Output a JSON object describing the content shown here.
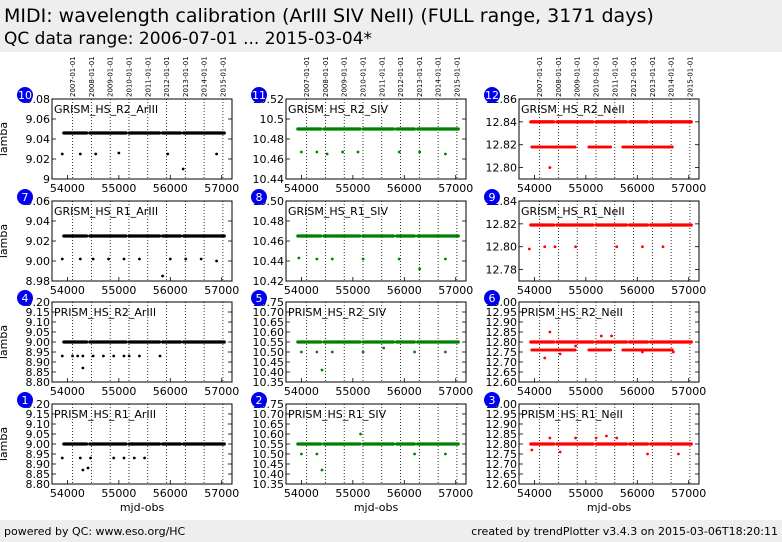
{
  "header": {
    "title": "MIDI: wavelength calibration (ArIII SIV NeII) (FULL range, 3171 days)",
    "subtitle": "QC data range: 2006-07-01 ... 2015-03-04*"
  },
  "footer": {
    "left": "powered by QC: www.eso.org/HC",
    "right": "created by trendPlotter v3.4.3 on 2015-03-06T18:20:11"
  },
  "colors": {
    "ArIII": "#000000",
    "SIV": "#008000",
    "NeII": "#ff0000",
    "badge": "#0000ee",
    "header_bg": "#eeeeee"
  },
  "chart_data": [
    {
      "panel": "10",
      "type": "scatter",
      "title": "GRISM_HS_R2_ArIII",
      "ylabel": "lamba",
      "xlabel": "",
      "ylim": [
        9.0,
        9.08
      ],
      "yticks": [
        9.0,
        9.02,
        9.04,
        9.06,
        9.08
      ],
      "xlim": [
        53700,
        57200
      ],
      "xticks": [
        54000,
        55000,
        56000,
        57000
      ],
      "color": "#000000",
      "main_value": 9.046,
      "outliers": [
        [
          53900,
          9.025
        ],
        [
          54250,
          9.025
        ],
        [
          54550,
          9.025
        ],
        [
          55000,
          9.026
        ],
        [
          55950,
          9.025
        ],
        [
          56250,
          9.01
        ],
        [
          56900,
          9.025
        ]
      ]
    },
    {
      "panel": "11",
      "type": "scatter",
      "title": "GRISM_HS_R2_SIV",
      "ylabel": "",
      "xlabel": "",
      "ylim": [
        10.44,
        10.52
      ],
      "yticks": [
        10.44,
        10.46,
        10.48,
        10.5,
        10.52
      ],
      "xlim": [
        53700,
        57200
      ],
      "xticks": [
        54000,
        55000,
        56000,
        57000
      ],
      "color": "#008000",
      "main_value": 10.49,
      "outliers": [
        [
          54000,
          10.467
        ],
        [
          54300,
          10.467
        ],
        [
          54500,
          10.465
        ],
        [
          54800,
          10.467
        ],
        [
          55100,
          10.467
        ],
        [
          55900,
          10.467
        ],
        [
          56300,
          10.467
        ],
        [
          56800,
          10.465
        ]
      ]
    },
    {
      "panel": "12",
      "type": "scatter",
      "title": "GRISM_HS_R2_NeII",
      "ylabel": "",
      "xlabel": "",
      "ylim": [
        12.79,
        12.86
      ],
      "yticks": [
        12.8,
        12.82,
        12.84,
        12.86
      ],
      "ytick_labels": [
        "12.80",
        "12.82",
        "12.84",
        "12.86"
      ],
      "xlim": [
        53700,
        57200
      ],
      "xticks": [
        54000,
        55000,
        56000,
        57000
      ],
      "color": "#ff0000",
      "main_value": 12.84,
      "secondary_value": 12.818,
      "outliers": [
        [
          54300,
          12.8
        ],
        [
          54100,
          12.818
        ],
        [
          54700,
          12.818
        ],
        [
          55200,
          12.818
        ],
        [
          55900,
          12.818
        ],
        [
          56300,
          12.818
        ],
        [
          56600,
          12.818
        ]
      ]
    },
    {
      "panel": "7",
      "type": "scatter",
      "title": "GRISM_HS_R1_ArIII",
      "ylabel": "lamba",
      "xlabel": "",
      "ylim": [
        8.98,
        9.06
      ],
      "yticks": [
        8.98,
        9.0,
        9.02,
        9.04,
        9.06
      ],
      "ytick_labels": [
        "8.98",
        "9.00",
        "9.02",
        "9.04",
        "9.06"
      ],
      "xlim": [
        53700,
        57200
      ],
      "xticks": [
        54000,
        55000,
        56000,
        57000
      ],
      "color": "#000000",
      "main_value": 9.025,
      "outliers": [
        [
          53900,
          9.002
        ],
        [
          54250,
          9.002
        ],
        [
          54500,
          9.002
        ],
        [
          54800,
          9.002
        ],
        [
          55100,
          9.002
        ],
        [
          55400,
          9.002
        ],
        [
          56000,
          9.002
        ],
        [
          56300,
          9.002
        ],
        [
          56600,
          9.002
        ],
        [
          55850,
          8.985
        ],
        [
          56900,
          9.0
        ]
      ]
    },
    {
      "panel": "8",
      "type": "scatter",
      "title": "GRISM_HS_R1_SIV",
      "ylabel": "",
      "xlabel": "",
      "ylim": [
        10.42,
        10.5
      ],
      "yticks": [
        10.42,
        10.44,
        10.46,
        10.48,
        10.5
      ],
      "ytick_labels": [
        "10.42",
        "10.44",
        "10.46",
        "10.48",
        "10.50"
      ],
      "xlim": [
        53700,
        57200
      ],
      "xticks": [
        54000,
        55000,
        56000,
        57000
      ],
      "color": "#008000",
      "main_value": 10.465,
      "outliers": [
        [
          53950,
          10.443
        ],
        [
          54300,
          10.442
        ],
        [
          54600,
          10.442
        ],
        [
          55200,
          10.442
        ],
        [
          55900,
          10.442
        ],
        [
          56300,
          10.432
        ],
        [
          56800,
          10.442
        ]
      ]
    },
    {
      "panel": "9",
      "type": "scatter",
      "title": "GRISM_HS_R1_NeII",
      "ylabel": "",
      "xlabel": "",
      "ylim": [
        12.77,
        12.84
      ],
      "yticks": [
        12.78,
        12.8,
        12.82,
        12.84
      ],
      "ytick_labels": [
        "12.78",
        "12.80",
        "12.82",
        "12.84"
      ],
      "xlim": [
        53700,
        57200
      ],
      "xticks": [
        54000,
        55000,
        56000,
        57000
      ],
      "color": "#ff0000",
      "main_value": 12.819,
      "outliers": [
        [
          53900,
          12.798
        ],
        [
          54200,
          12.8
        ],
        [
          54400,
          12.8
        ],
        [
          54800,
          12.8
        ],
        [
          55600,
          12.8
        ],
        [
          56100,
          12.8
        ],
        [
          56500,
          12.8
        ]
      ]
    },
    {
      "panel": "4",
      "type": "scatter",
      "title": "PRISM_HS_R2_ArIII",
      "ylabel": "lamba",
      "xlabel": "",
      "ylim": [
        8.8,
        9.2
      ],
      "yticks": [
        8.8,
        8.85,
        8.9,
        8.95,
        9.0,
        9.05,
        9.1,
        9.15,
        9.2
      ],
      "ytick_labels": [
        "8.80",
        "8.85",
        "8.90",
        "8.95",
        "9.00",
        "9.05",
        "9.10",
        "9.15",
        "9.20"
      ],
      "xlim": [
        53700,
        57200
      ],
      "xticks": [
        54000,
        55000,
        56000,
        57000
      ],
      "color": "#000000",
      "main_value": 9.0,
      "outliers": [
        [
          53900,
          8.93
        ],
        [
          54100,
          8.93
        ],
        [
          54200,
          8.93
        ],
        [
          54300,
          8.93
        ],
        [
          54500,
          8.93
        ],
        [
          54700,
          8.93
        ],
        [
          54900,
          8.93
        ],
        [
          55100,
          8.93
        ],
        [
          55200,
          8.93
        ],
        [
          55400,
          8.93
        ],
        [
          55800,
          8.93
        ],
        [
          54300,
          8.87
        ]
      ]
    },
    {
      "panel": "5",
      "type": "scatter",
      "title": "PRISM_HS_R2_SIV",
      "ylabel": "",
      "xlabel": "",
      "ylim": [
        10.35,
        10.75
      ],
      "yticks": [
        10.35,
        10.4,
        10.45,
        10.5,
        10.55,
        10.6,
        10.65,
        10.7,
        10.75
      ],
      "ytick_labels": [
        "10.35",
        "10.40",
        "10.45",
        "10.50",
        "10.55",
        "10.60",
        "10.65",
        "10.70",
        "10.75"
      ],
      "xlim": [
        53700,
        57200
      ],
      "xticks": [
        54000,
        55000,
        56000,
        57000
      ],
      "color": "#008000",
      "main_value": 10.55,
      "outliers": [
        [
          54000,
          10.5
        ],
        [
          54300,
          10.5
        ],
        [
          54600,
          10.5
        ],
        [
          55200,
          10.5
        ],
        [
          55600,
          10.52
        ],
        [
          56200,
          10.5
        ],
        [
          56800,
          10.5
        ],
        [
          54400,
          10.41
        ]
      ]
    },
    {
      "panel": "6",
      "type": "scatter",
      "title": "PRISM_HS_R2_NeII",
      "ylabel": "",
      "xlabel": "",
      "ylim": [
        12.6,
        13.0
      ],
      "yticks": [
        12.6,
        12.65,
        12.7,
        12.75,
        12.8,
        12.85,
        12.9,
        12.95,
        13.0
      ],
      "ytick_labels": [
        "12.60",
        "12.65",
        "12.70",
        "12.75",
        "12.80",
        "12.85",
        "12.90",
        "12.95",
        "13.00"
      ],
      "xlim": [
        53700,
        57200
      ],
      "xticks": [
        54000,
        55000,
        56000,
        57000
      ],
      "color": "#ff0000",
      "main_value": 12.8,
      "secondary_value": 12.76,
      "outliers": [
        [
          54300,
          12.85
        ],
        [
          54200,
          12.72
        ],
        [
          54500,
          12.74
        ],
        [
          54800,
          12.78
        ],
        [
          55300,
          12.83
        ],
        [
          55500,
          12.83
        ],
        [
          56100,
          12.75
        ],
        [
          56700,
          12.75
        ]
      ]
    },
    {
      "panel": "1",
      "type": "scatter",
      "title": "PRISM_HS_R1_ArIII",
      "ylabel": "lamba",
      "xlabel": "mjd-obs",
      "ylim": [
        8.8,
        9.2
      ],
      "yticks": [
        8.8,
        8.85,
        8.9,
        8.95,
        9.0,
        9.05,
        9.1,
        9.15,
        9.2
      ],
      "ytick_labels": [
        "8.80",
        "8.85",
        "8.90",
        "8.95",
        "9.00",
        "9.05",
        "9.10",
        "9.15",
        "9.20"
      ],
      "xlim": [
        53700,
        57200
      ],
      "xticks": [
        54000,
        55000,
        56000,
        57000
      ],
      "color": "#000000",
      "main_value": 9.0,
      "outliers": [
        [
          53900,
          8.93
        ],
        [
          54250,
          8.93
        ],
        [
          54450,
          8.93
        ],
        [
          54900,
          8.93
        ],
        [
          55100,
          8.93
        ],
        [
          55300,
          8.93
        ],
        [
          55500,
          8.93
        ],
        [
          54300,
          8.87
        ],
        [
          54400,
          8.88
        ]
      ]
    },
    {
      "panel": "2",
      "type": "scatter",
      "title": "PRISM_HS_R1_SIV",
      "ylabel": "",
      "xlabel": "mjd-obs",
      "ylim": [
        10.35,
        10.75
      ],
      "yticks": [
        10.35,
        10.4,
        10.45,
        10.5,
        10.55,
        10.6,
        10.65,
        10.7,
        10.75
      ],
      "ytick_labels": [
        "10.35",
        "10.40",
        "10.45",
        "10.50",
        "10.55",
        "10.60",
        "10.65",
        "10.70",
        "10.75"
      ],
      "xlim": [
        53700,
        57200
      ],
      "xticks": [
        54000,
        55000,
        56000,
        57000
      ],
      "color": "#008000",
      "main_value": 10.55,
      "outliers": [
        [
          54000,
          10.5
        ],
        [
          54300,
          10.5
        ],
        [
          55150,
          10.6
        ],
        [
          55400,
          10.55
        ],
        [
          56200,
          10.5
        ],
        [
          56800,
          10.5
        ],
        [
          54400,
          10.42
        ]
      ]
    },
    {
      "panel": "3",
      "type": "scatter",
      "title": "PRISM_HS_R1_NeII",
      "ylabel": "",
      "xlabel": "mjd-obs",
      "ylim": [
        12.6,
        13.0
      ],
      "yticks": [
        12.6,
        12.65,
        12.7,
        12.75,
        12.8,
        12.85,
        12.9,
        12.95,
        13.0
      ],
      "ytick_labels": [
        "12.60",
        "12.65",
        "12.70",
        "12.75",
        "12.80",
        "12.85",
        "12.90",
        "12.95",
        "13.00"
      ],
      "xlim": [
        53700,
        57200
      ],
      "xticks": [
        54000,
        55000,
        56000,
        57000
      ],
      "color": "#ff0000",
      "main_value": 12.8,
      "outliers": [
        [
          53950,
          12.77
        ],
        [
          54300,
          12.83
        ],
        [
          54500,
          12.76
        ],
        [
          54800,
          12.83
        ],
        [
          55200,
          12.83
        ],
        [
          55400,
          12.84
        ],
        [
          55600,
          12.83
        ],
        [
          56200,
          12.75
        ],
        [
          56800,
          12.75
        ]
      ]
    }
  ],
  "date_ticks": [
    {
      "label": "2007-01-01",
      "mjd": 54101
    },
    {
      "label": "2008-01-01",
      "mjd": 54466
    },
    {
      "label": "2009-01-01",
      "mjd": 54832
    },
    {
      "label": "2010-01-01",
      "mjd": 55197
    },
    {
      "label": "2011-01-01",
      "mjd": 55562
    },
    {
      "label": "2012-01-01",
      "mjd": 55927
    },
    {
      "label": "2013-01-01",
      "mjd": 56293
    },
    {
      "label": "2014-01-01",
      "mjd": 56658
    },
    {
      "label": "2015-01-01",
      "mjd": 57023
    }
  ],
  "gaps": [
    [
      54380,
      54430
    ],
    [
      55150,
      55200
    ],
    [
      55800,
      55850
    ],
    [
      56200,
      56250
    ]
  ]
}
